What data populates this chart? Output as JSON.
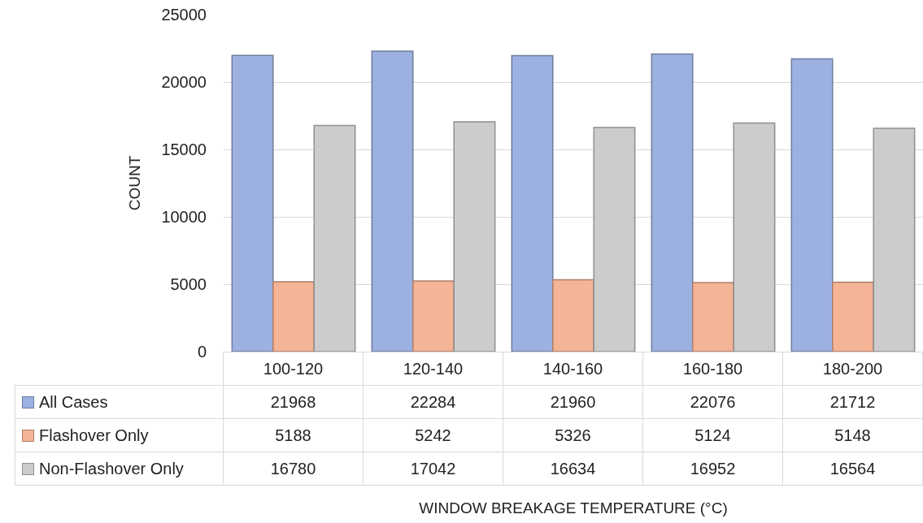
{
  "chart_data": {
    "type": "bar",
    "annotations": [
      "WINDOW BREAKAGE TEMPERATURE (°C)"
    ],
    "ylabel": "COUNT",
    "categories": [
      "100-120",
      "120-140",
      "140-160",
      "160-180",
      "180-200"
    ],
    "series": [
      {
        "name": "All Cases",
        "color": "#9db1e0",
        "values": [
          21968,
          22284,
          21960,
          22076,
          21712
        ]
      },
      {
        "name": "Flashover Only",
        "color": "#f5b496",
        "values": [
          5188,
          5242,
          5326,
          5124,
          5148
        ]
      },
      {
        "name": "Non-Flashover Only",
        "color": "#cccccc",
        "values": [
          16780,
          17042,
          16634,
          16952,
          16564
        ]
      }
    ],
    "ylim": [
      0,
      25000
    ],
    "yticks": [
      0,
      5000,
      10000,
      15000,
      20000,
      25000
    ],
    "grid": "y",
    "data_labels": true,
    "legend": "bottom"
  }
}
